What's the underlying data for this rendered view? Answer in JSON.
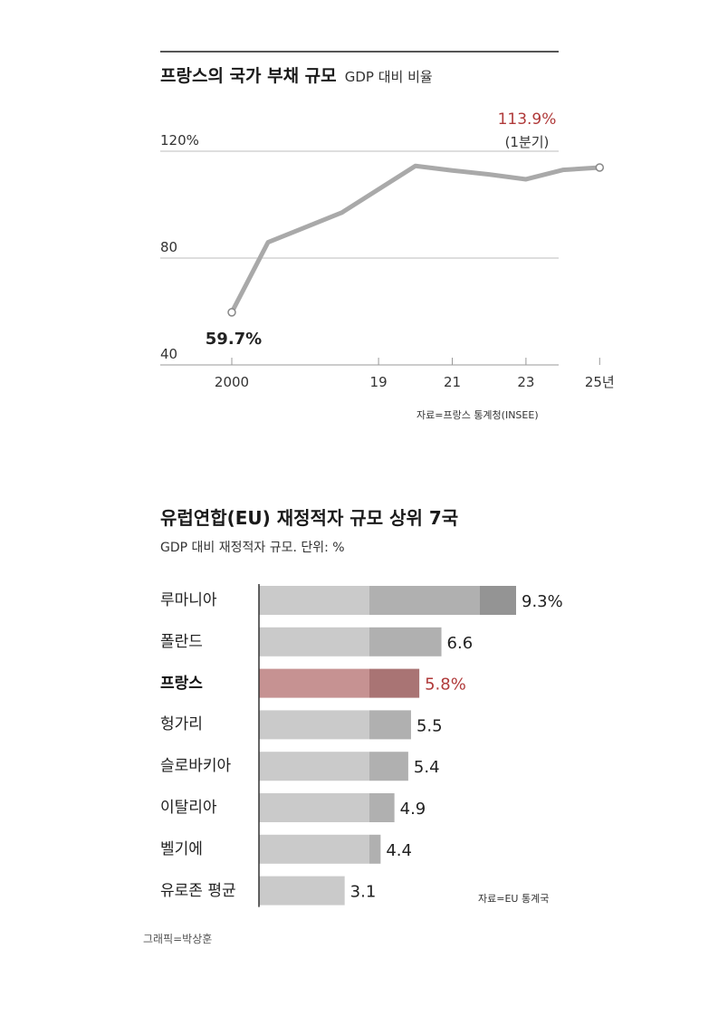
{
  "chart_data": [
    {
      "type": "line",
      "title": "프랑스의 국가 부채 규모",
      "subtitle": "GDP 대비 비율",
      "source": "자료=프랑스 통계청(INSEE)",
      "x": [
        2000,
        2016,
        2018,
        2020,
        2021,
        2022,
        2023,
        2024,
        2025
      ],
      "series": [
        {
          "values": [
            59.7,
            85.9,
            97.0,
            114.5,
            112.8,
            111.3,
            109.5,
            113.0,
            113.9
          ]
        }
      ],
      "xticks": [
        "2000",
        "19",
        "21",
        "23",
        "25년"
      ],
      "yticks": [
        "120%",
        "80",
        "40"
      ],
      "ylim": [
        40,
        120
      ],
      "grid": true,
      "annotations": {
        "start_value": "59.7%",
        "end_value": "113.9%",
        "end_note": "(1분기)"
      },
      "colors": {
        "line": "#a9a9a9",
        "highlight": "#b03a3a",
        "grid": "#bdbdbd"
      }
    },
    {
      "type": "bar",
      "orientation": "horizontal",
      "title": "유럽연합(EU) 재정적자 규모 상위 7국",
      "subtitle": "GDP 대비 재정적자 규모. 단위: %",
      "source": "자료=EU 통계국",
      "categories": [
        "루마니아",
        "폴란드",
        "프랑스",
        "헝가리",
        "슬로바키아",
        "이탈리아",
        "벨기에",
        "유로존 평균"
      ],
      "values": [
        9.3,
        6.6,
        5.8,
        5.5,
        5.4,
        4.9,
        4.4,
        3.1
      ],
      "value_labels": [
        "9.3%",
        "6.6",
        "5.8%",
        "5.5",
        "5.4",
        "4.9",
        "4.4",
        "3.1"
      ],
      "highlight": "프랑스",
      "xlim": [
        0,
        9.3
      ],
      "colors": {
        "light": "#cacaca",
        "mid": "#b0b0b0",
        "dark": "#949494",
        "hl_light": "#c69292",
        "hl_mid": "#a97474",
        "hl_text": "#b03a3a"
      }
    }
  ],
  "credit": "그래픽=박상훈"
}
